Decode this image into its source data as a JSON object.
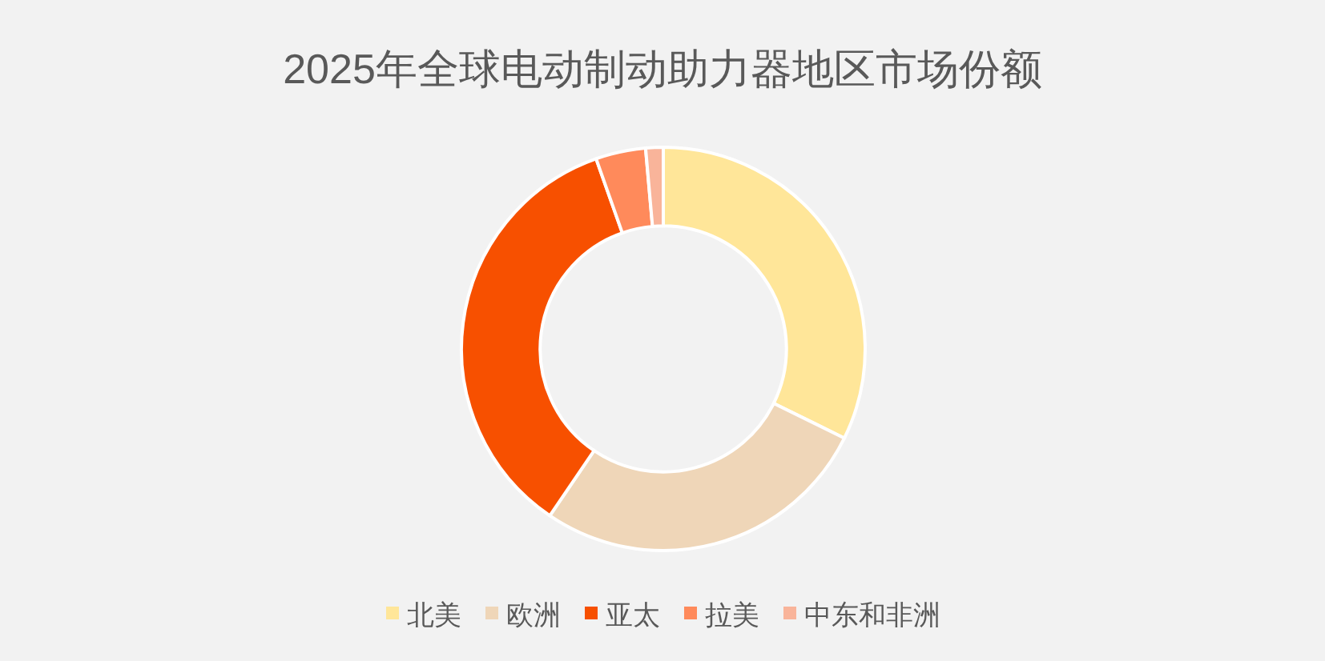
{
  "chart_data": {
    "type": "donut",
    "title": "2025年全球电动制动助力器地区市场份额",
    "categories": [
      "北美",
      "欧洲",
      "亚太",
      "拉美",
      "中东和非洲"
    ],
    "values": [
      32.3,
      27.2,
      35.1,
      4.0,
      1.4
    ],
    "colors": [
      "#ffe699",
      "#efd6b8",
      "#f75000",
      "#ff8a5b",
      "#f9b49a"
    ],
    "legend": "bottom"
  }
}
